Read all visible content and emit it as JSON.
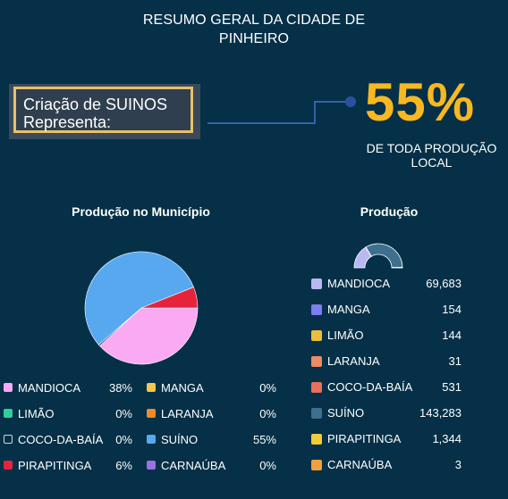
{
  "header": {
    "title_line1": "RESUMO GERAL DA CIDADE DE",
    "title_line2": "PINHEIRO"
  },
  "callout": {
    "line1": "Criação de SUINOS",
    "line2": "Representa:",
    "value": "55%",
    "caption_line1": "DE TODA PRODUÇÃO",
    "caption_line2": "LOCAL",
    "accent_color": "#f8b822",
    "frame_color": "#e8c06a"
  },
  "chart_data": [
    {
      "type": "pie",
      "title": "Produção no Município",
      "slices": [
        {
          "label": "MANDIOCA",
          "percent": "38%",
          "value": 38,
          "color": "#f9aaf3"
        },
        {
          "label": "MANGA",
          "percent": "0%",
          "value": 0,
          "color": "#f2c74a"
        },
        {
          "label": "LIMÃO",
          "percent": "0%",
          "value": 0,
          "color": "#2fcf9e"
        },
        {
          "label": "LARANJA",
          "percent": "0%",
          "value": 0,
          "color": "#f08a2c"
        },
        {
          "label": "COCO-DA-BAÍA",
          "percent": "0%",
          "value": 0.4,
          "color": "#053047"
        },
        {
          "label": "SUÍNO",
          "percent": "55%",
          "value": 55,
          "color": "#58a8f0"
        },
        {
          "label": "PIRAPITINGA",
          "percent": "6%",
          "value": 6,
          "color": "#e5243c"
        },
        {
          "label": "CARNAÚBA",
          "percent": "0%",
          "value": 0,
          "color": "#9c6fe6"
        }
      ],
      "legend_placement": "bottom"
    },
    {
      "type": "donut",
      "title": "Produção",
      "series": [
        {
          "label": "MANDIOCA",
          "value": 69683,
          "display": "69,683",
          "color": "#b9b8f2"
        },
        {
          "label": "MANGA",
          "value": 154,
          "display": "154",
          "color": "#7d7ef0"
        },
        {
          "label": "LIMÃO",
          "value": 144,
          "display": "144",
          "color": "#ebbf3c"
        },
        {
          "label": "LARANJA",
          "value": 31,
          "display": "31",
          "color": "#ee8a64"
        },
        {
          "label": "COCO-DA-BAÍA",
          "value": 531,
          "display": "531",
          "color": "#e8705a"
        },
        {
          "label": "SUÍNO",
          "value": 143283,
          "display": "143,283",
          "color": "#3f6f8f"
        },
        {
          "label": "PIRAPITINGA",
          "value": 1344,
          "display": "1,344",
          "color": "#f2cd3a"
        },
        {
          "label": "CARNAÚBA",
          "value": 3,
          "display": "3",
          "color": "#f0a03c"
        }
      ],
      "legend_placement": "bottom"
    }
  ]
}
